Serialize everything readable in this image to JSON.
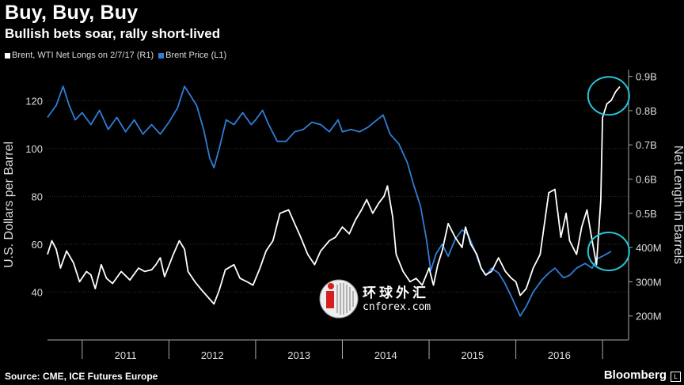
{
  "header": {
    "title": "Buy, Buy, Buy",
    "subtitle": "Bullish bets soar, rally short-lived"
  },
  "legend": [
    {
      "label": "Brent, WTI Net Longs on 2/7/17 (R1)",
      "color": "#ffffff"
    },
    {
      "label": "Brent Price (L1)",
      "color": "#2f7ed8"
    }
  ],
  "footer": {
    "source": "Source: CME, ICE Futures Europe",
    "brand": "Bloomberg",
    "brand_mark": "L"
  },
  "watermark": {
    "chinese": "环球外汇",
    "domain": "cnforex.com"
  },
  "chart_data": {
    "type": "line",
    "x_categories": [
      "2011",
      "2012",
      "2013",
      "2014",
      "2015",
      "2016"
    ],
    "y_left": {
      "label": "U.S. Dollars per Barrel",
      "ticks": [
        "40",
        "60",
        "80",
        "100",
        "120"
      ],
      "range": [
        20,
        133
      ]
    },
    "y_right": {
      "label": "Net Length in Barrels",
      "ticks": [
        "200M",
        "300M",
        "400M",
        "0.5B",
        "0.6B",
        "0.7B",
        "0.8B",
        "0.9B"
      ],
      "range": [
        130,
        920
      ]
    },
    "x_range": [
      2010.6,
      2017.3
    ],
    "series": [
      {
        "name": "Brent Price (L1)",
        "axis": "left",
        "color": "#2f7ed8",
        "points": [
          [
            2010.6,
            113
          ],
          [
            2010.7,
            118
          ],
          [
            2010.78,
            126
          ],
          [
            2010.85,
            118
          ],
          [
            2010.92,
            112
          ],
          [
            2011.0,
            115
          ],
          [
            2011.1,
            110
          ],
          [
            2011.2,
            116
          ],
          [
            2011.3,
            108
          ],
          [
            2011.4,
            113
          ],
          [
            2011.5,
            107
          ],
          [
            2011.6,
            112
          ],
          [
            2011.7,
            106
          ],
          [
            2011.8,
            110
          ],
          [
            2011.9,
            106
          ],
          [
            2012.0,
            111
          ],
          [
            2012.1,
            117
          ],
          [
            2012.18,
            126
          ],
          [
            2012.25,
            122
          ],
          [
            2012.32,
            118
          ],
          [
            2012.4,
            108
          ],
          [
            2012.47,
            96
          ],
          [
            2012.52,
            92
          ],
          [
            2012.58,
            100
          ],
          [
            2012.66,
            112
          ],
          [
            2012.75,
            110
          ],
          [
            2012.85,
            115
          ],
          [
            2012.95,
            110
          ],
          [
            2013.0,
            112
          ],
          [
            2013.08,
            116
          ],
          [
            2013.15,
            110
          ],
          [
            2013.25,
            103
          ],
          [
            2013.35,
            103
          ],
          [
            2013.45,
            107
          ],
          [
            2013.55,
            108
          ],
          [
            2013.65,
            111
          ],
          [
            2013.75,
            110
          ],
          [
            2013.85,
            107
          ],
          [
            2013.95,
            112
          ],
          [
            2014.0,
            107
          ],
          [
            2014.1,
            108
          ],
          [
            2014.2,
            107
          ],
          [
            2014.3,
            109
          ],
          [
            2014.4,
            112
          ],
          [
            2014.47,
            114
          ],
          [
            2014.55,
            106
          ],
          [
            2014.65,
            102
          ],
          [
            2014.75,
            94
          ],
          [
            2014.82,
            85
          ],
          [
            2014.9,
            76
          ],
          [
            2014.97,
            62
          ],
          [
            2015.02,
            49
          ],
          [
            2015.08,
            56
          ],
          [
            2015.15,
            60
          ],
          [
            2015.22,
            55
          ],
          [
            2015.3,
            62
          ],
          [
            2015.38,
            66
          ],
          [
            2015.45,
            64
          ],
          [
            2015.52,
            58
          ],
          [
            2015.6,
            50
          ],
          [
            2015.66,
            47
          ],
          [
            2015.72,
            50
          ],
          [
            2015.8,
            48
          ],
          [
            2015.87,
            44
          ],
          [
            2015.95,
            38
          ],
          [
            2016.0,
            34
          ],
          [
            2016.05,
            30
          ],
          [
            2016.12,
            34
          ],
          [
            2016.2,
            40
          ],
          [
            2016.3,
            45
          ],
          [
            2016.38,
            48
          ],
          [
            2016.45,
            50
          ],
          [
            2016.55,
            46
          ],
          [
            2016.62,
            47
          ],
          [
            2016.7,
            50
          ],
          [
            2016.8,
            52
          ],
          [
            2016.88,
            50
          ],
          [
            2016.94,
            54
          ],
          [
            2017.0,
            55
          ],
          [
            2017.05,
            56
          ],
          [
            2017.1,
            57
          ]
        ]
      },
      {
        "name": "Brent, WTI Net Longs on 2/7/17 (R1)",
        "axis": "right",
        "color": "#ffffff",
        "points": [
          [
            2010.6,
            380
          ],
          [
            2010.65,
            420
          ],
          [
            2010.7,
            395
          ],
          [
            2010.75,
            340
          ],
          [
            2010.82,
            390
          ],
          [
            2010.9,
            355
          ],
          [
            2010.97,
            300
          ],
          [
            2011.05,
            330
          ],
          [
            2011.1,
            320
          ],
          [
            2011.15,
            280
          ],
          [
            2011.22,
            350
          ],
          [
            2011.28,
            310
          ],
          [
            2011.35,
            295
          ],
          [
            2011.45,
            330
          ],
          [
            2011.55,
            305
          ],
          [
            2011.65,
            340
          ],
          [
            2011.72,
            330
          ],
          [
            2011.8,
            335
          ],
          [
            2011.85,
            350
          ],
          [
            2011.9,
            370
          ],
          [
            2011.95,
            315
          ],
          [
            2012.05,
            380
          ],
          [
            2012.12,
            420
          ],
          [
            2012.18,
            395
          ],
          [
            2012.22,
            330
          ],
          [
            2012.3,
            300
          ],
          [
            2012.38,
            275
          ],
          [
            2012.45,
            255
          ],
          [
            2012.52,
            235
          ],
          [
            2012.58,
            275
          ],
          [
            2012.65,
            335
          ],
          [
            2012.75,
            350
          ],
          [
            2012.82,
            310
          ],
          [
            2012.9,
            300
          ],
          [
            2012.97,
            290
          ],
          [
            2013.05,
            340
          ],
          [
            2013.12,
            390
          ],
          [
            2013.2,
            420
          ],
          [
            2013.28,
            500
          ],
          [
            2013.38,
            510
          ],
          [
            2013.45,
            470
          ],
          [
            2013.52,
            430
          ],
          [
            2013.6,
            380
          ],
          [
            2013.68,
            350
          ],
          [
            2013.75,
            390
          ],
          [
            2013.85,
            420
          ],
          [
            2013.92,
            430
          ],
          [
            2014.0,
            460
          ],
          [
            2014.08,
            440
          ],
          [
            2014.15,
            480
          ],
          [
            2014.22,
            510
          ],
          [
            2014.28,
            540
          ],
          [
            2014.35,
            500
          ],
          [
            2014.42,
            530
          ],
          [
            2014.48,
            550
          ],
          [
            2014.52,
            580
          ],
          [
            2014.58,
            490
          ],
          [
            2014.62,
            380
          ],
          [
            2014.7,
            330
          ],
          [
            2014.78,
            300
          ],
          [
            2014.85,
            310
          ],
          [
            2014.92,
            290
          ],
          [
            2015.0,
            340
          ],
          [
            2015.05,
            290
          ],
          [
            2015.1,
            350
          ],
          [
            2015.15,
            390
          ],
          [
            2015.22,
            470
          ],
          [
            2015.3,
            430
          ],
          [
            2015.38,
            400
          ],
          [
            2015.42,
            460
          ],
          [
            2015.48,
            410
          ],
          [
            2015.55,
            380
          ],
          [
            2015.6,
            340
          ],
          [
            2015.65,
            320
          ],
          [
            2015.72,
            330
          ],
          [
            2015.8,
            370
          ],
          [
            2015.88,
            330
          ],
          [
            2015.95,
            310
          ],
          [
            2016.0,
            300
          ],
          [
            2016.05,
            260
          ],
          [
            2016.12,
            280
          ],
          [
            2016.2,
            340
          ],
          [
            2016.28,
            380
          ],
          [
            2016.38,
            560
          ],
          [
            2016.45,
            570
          ],
          [
            2016.52,
            430
          ],
          [
            2016.58,
            500
          ],
          [
            2016.62,
            420
          ],
          [
            2016.7,
            380
          ],
          [
            2016.76,
            460
          ],
          [
            2016.82,
            510
          ],
          [
            2016.88,
            420
          ],
          [
            2016.93,
            350
          ],
          [
            2016.98,
            540
          ],
          [
            2017.0,
            780
          ],
          [
            2017.05,
            820
          ],
          [
            2017.1,
            830
          ],
          [
            2017.15,
            855
          ],
          [
            2017.2,
            870
          ]
        ]
      }
    ],
    "highlight_circles": [
      {
        "x": 2017.07,
        "y": 122,
        "axis": "left",
        "color": "#26c6da"
      },
      {
        "x": 2017.07,
        "y": 57,
        "axis": "left",
        "color": "#26c6da"
      }
    ]
  }
}
